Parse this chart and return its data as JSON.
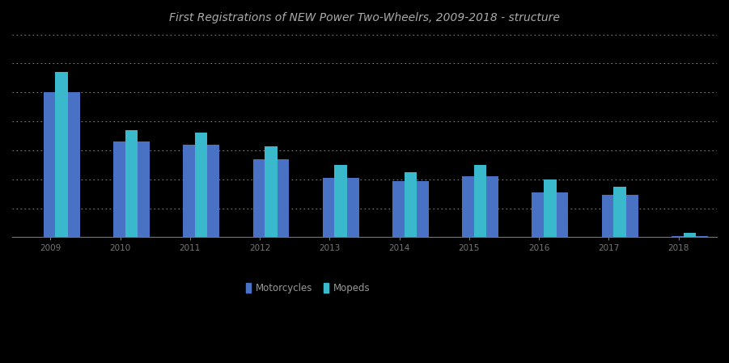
{
  "title": "First Registrations of NEW Power Two-Wheelrs, 2009-2018 - structure",
  "title_color": "#aaaaaa",
  "background_color": "#000000",
  "plot_bg_color": "#000000",
  "years": [
    "2009",
    "2010",
    "2011",
    "2012",
    "2013",
    "2014",
    "2015",
    "2016",
    "2017",
    "2018"
  ],
  "motorcycles": [
    50000,
    33000,
    32000,
    27000,
    20500,
    19500,
    21000,
    15500,
    14500,
    400
  ],
  "mopeds": [
    57000,
    37000,
    36000,
    31500,
    25000,
    22500,
    25000,
    20000,
    17500,
    1400
  ],
  "bar_color_motorcycles": "#4a72c4",
  "bar_color_mopeds": "#3ab8cc",
  "legend_label_motorcycles": "Motorcycles",
  "legend_label_mopeds": "Mopeds",
  "legend_text_color": "#999999",
  "grid_color": "#ffffff",
  "axis_color": "#777777",
  "moto_bar_width": 0.52,
  "moped_bar_width": 0.18,
  "ylim": [
    0,
    70000
  ]
}
